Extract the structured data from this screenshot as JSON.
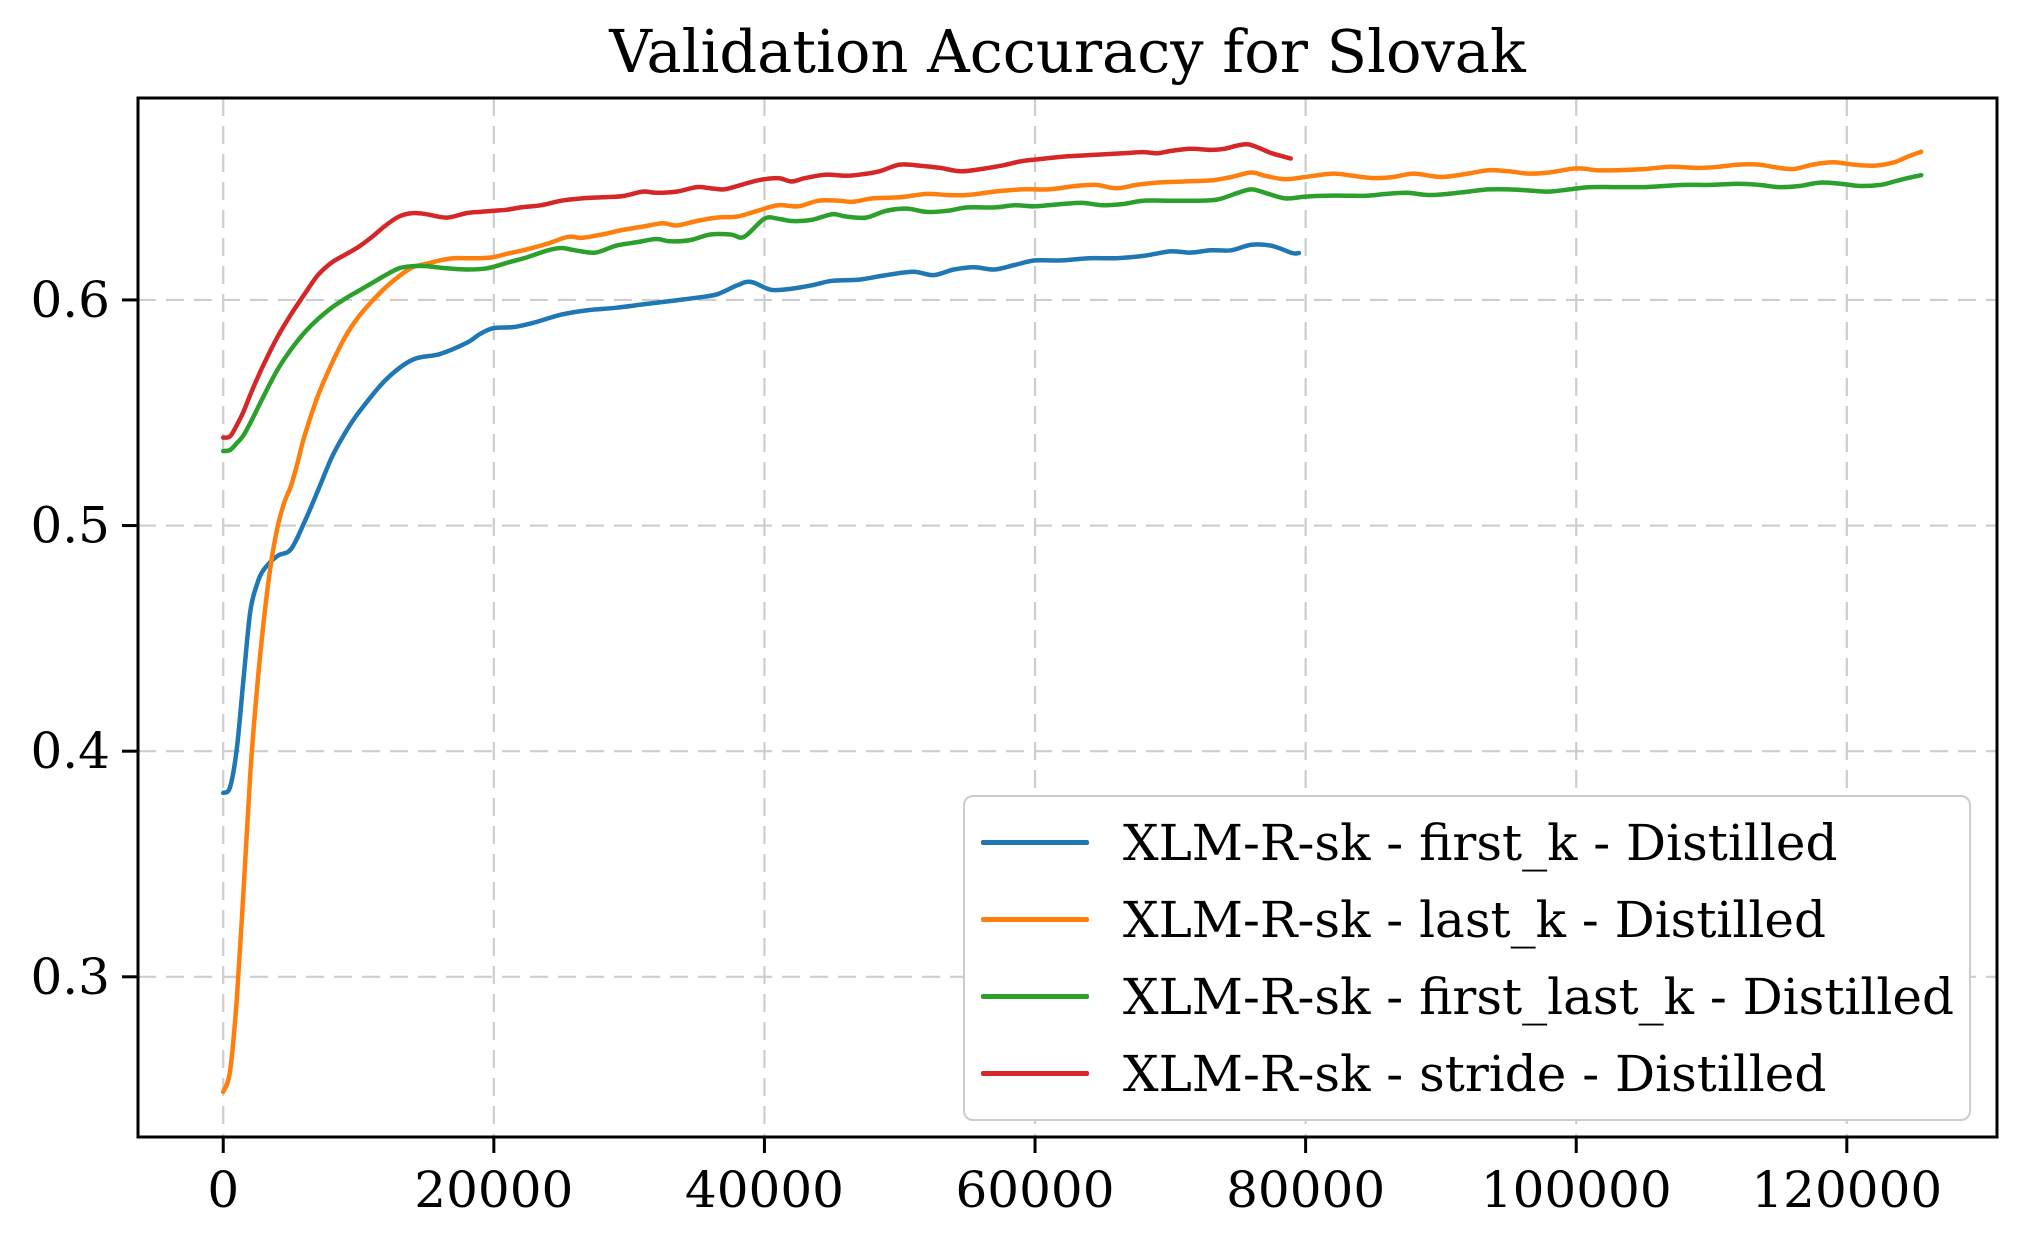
{
  "figure": {
    "background": "#ffffff"
  },
  "chart_data": {
    "type": "line",
    "title": "Validation Accuracy for Slovak",
    "xlabel": "",
    "ylabel": "",
    "xlim": [
      -6300,
      131100
    ],
    "ylim": [
      0.229,
      0.6895
    ],
    "x_ticks": [
      0,
      20000,
      40000,
      60000,
      80000,
      100000,
      120000
    ],
    "y_ticks": [
      0.3,
      0.4,
      0.5,
      0.6
    ],
    "grid": true,
    "grid_color": "#cdcdcd",
    "axis_color": "#000000",
    "legend_position": "lower right",
    "series": [
      {
        "label": "XLM-R-sk - first_k - Distilled",
        "color": "#1f77b4",
        "x": [
          0,
          500,
          1000,
          1500,
          2000,
          2500,
          3000,
          4000,
          5000,
          6000,
          7000,
          8000,
          9000,
          10000,
          12000,
          14000,
          16000,
          18000,
          19000,
          20000,
          21500,
          23000,
          25000,
          27000,
          29000,
          31000,
          33000,
          35000,
          36500,
          38000,
          39000,
          40500,
          42000,
          43500,
          45000,
          47000,
          49000,
          51000,
          52500,
          54000,
          55500,
          57000,
          58500,
          60000,
          62000,
          64000,
          66000,
          68000,
          70000,
          71500,
          73000,
          74500,
          76000,
          77500,
          79000,
          79500
        ],
        "y": [
          0.3815,
          0.384,
          0.401,
          0.432,
          0.462,
          0.474,
          0.4805,
          0.4865,
          0.4895,
          0.5015,
          0.5155,
          0.53,
          0.541,
          0.55,
          0.5645,
          0.5735,
          0.576,
          0.581,
          0.585,
          0.5875,
          0.588,
          0.59,
          0.5935,
          0.5955,
          0.5965,
          0.598,
          0.5995,
          0.601,
          0.6025,
          0.6065,
          0.608,
          0.6045,
          0.605,
          0.6065,
          0.6085,
          0.609,
          0.611,
          0.6125,
          0.611,
          0.6135,
          0.6145,
          0.6135,
          0.6155,
          0.6175,
          0.6175,
          0.6185,
          0.6185,
          0.6195,
          0.6215,
          0.621,
          0.622,
          0.622,
          0.6245,
          0.624,
          0.6208,
          0.6208
        ]
      },
      {
        "label": "XLM-R-sk - last_k - Distilled",
        "color": "#ff7f0e",
        "x": [
          0,
          500,
          1000,
          1500,
          2000,
          2500,
          3000,
          3500,
          4000,
          4500,
          5000,
          5500,
          6000,
          7000,
          8000,
          9000,
          10000,
          11000,
          12000,
          13000,
          14000,
          15000,
          16000,
          17000,
          18000,
          19000,
          20000,
          21000,
          22500,
          24000,
          25500,
          26500,
          28000,
          29500,
          31000,
          32500,
          33500,
          35000,
          36500,
          38000,
          39500,
          41000,
          42500,
          44000,
          45500,
          46500,
          48000,
          50000,
          52000,
          53500,
          55000,
          57000,
          59000,
          61000,
          63000,
          64500,
          66000,
          67500,
          69000,
          71000,
          73000,
          74500,
          76000,
          77000,
          78500,
          80000,
          82000,
          83500,
          85000,
          86500,
          88000,
          90000,
          92000,
          93500,
          95000,
          96500,
          98000,
          100000,
          101500,
          103000,
          105000,
          107000,
          109000,
          110500,
          112000,
          113500,
          114500,
          116000,
          117500,
          119000,
          120500,
          122000,
          123500,
          124500,
          125500
        ],
        "y": [
          0.249,
          0.258,
          0.29,
          0.338,
          0.39,
          0.428,
          0.458,
          0.482,
          0.499,
          0.51,
          0.5175,
          0.528,
          0.5395,
          0.5575,
          0.5715,
          0.5835,
          0.5925,
          0.5995,
          0.6055,
          0.6105,
          0.6145,
          0.616,
          0.6175,
          0.6185,
          0.6185,
          0.6185,
          0.619,
          0.6205,
          0.6225,
          0.625,
          0.628,
          0.6275,
          0.629,
          0.631,
          0.6325,
          0.634,
          0.633,
          0.635,
          0.6365,
          0.637,
          0.6395,
          0.642,
          0.6415,
          0.644,
          0.644,
          0.6435,
          0.645,
          0.6455,
          0.647,
          0.6465,
          0.6465,
          0.648,
          0.649,
          0.649,
          0.6505,
          0.651,
          0.6495,
          0.651,
          0.652,
          0.6525,
          0.653,
          0.6545,
          0.6565,
          0.655,
          0.6535,
          0.6545,
          0.656,
          0.655,
          0.654,
          0.6545,
          0.656,
          0.6545,
          0.656,
          0.6575,
          0.657,
          0.656,
          0.6565,
          0.6583,
          0.6575,
          0.6575,
          0.658,
          0.659,
          0.6585,
          0.659,
          0.66,
          0.66,
          0.659,
          0.658,
          0.66,
          0.661,
          0.66,
          0.6595,
          0.661,
          0.6635,
          0.6657
        ]
      },
      {
        "label": "XLM-R-sk - first_last_k - Distilled",
        "color": "#2ca02c",
        "x": [
          0,
          500,
          1000,
          1500,
          2000,
          2500,
          3000,
          4000,
          5000,
          6000,
          7000,
          8000,
          9000,
          10000,
          11000,
          12000,
          13000,
          14000,
          15000,
          16500,
          18000,
          19500,
          21000,
          22500,
          24000,
          25000,
          26000,
          27500,
          29000,
          30500,
          32000,
          33000,
          34500,
          36000,
          37500,
          38500,
          40000,
          41000,
          42000,
          43500,
          45000,
          46000,
          47500,
          49000,
          50500,
          52000,
          53500,
          55000,
          57000,
          58500,
          60000,
          62000,
          63500,
          65000,
          66500,
          68000,
          70000,
          72000,
          73500,
          75000,
          76000,
          77000,
          78500,
          80000,
          81500,
          83000,
          84500,
          86000,
          87500,
          89000,
          90500,
          92000,
          93500,
          95000,
          96500,
          98000,
          99500,
          101000,
          103000,
          105000,
          106500,
          108000,
          110000,
          112000,
          113500,
          115000,
          116500,
          118000,
          119500,
          121000,
          122500,
          123500,
          124500,
          125500
        ],
        "y": [
          0.533,
          0.5335,
          0.5365,
          0.54,
          0.5455,
          0.5515,
          0.5575,
          0.569,
          0.578,
          0.5855,
          0.5915,
          0.5965,
          0.6005,
          0.604,
          0.6075,
          0.611,
          0.614,
          0.615,
          0.615,
          0.614,
          0.6135,
          0.614,
          0.6165,
          0.619,
          0.622,
          0.623,
          0.622,
          0.621,
          0.624,
          0.6255,
          0.627,
          0.626,
          0.6265,
          0.629,
          0.629,
          0.628,
          0.636,
          0.636,
          0.635,
          0.6355,
          0.638,
          0.637,
          0.6365,
          0.6395,
          0.6405,
          0.639,
          0.6395,
          0.641,
          0.641,
          0.642,
          0.6415,
          0.6425,
          0.643,
          0.642,
          0.6425,
          0.644,
          0.644,
          0.644,
          0.6445,
          0.6475,
          0.649,
          0.6475,
          0.645,
          0.6458,
          0.6462,
          0.6462,
          0.6462,
          0.647,
          0.6475,
          0.6465,
          0.647,
          0.648,
          0.649,
          0.649,
          0.6485,
          0.648,
          0.649,
          0.65,
          0.65,
          0.65,
          0.6505,
          0.651,
          0.651,
          0.6515,
          0.651,
          0.65,
          0.6505,
          0.652,
          0.6515,
          0.6505,
          0.651,
          0.6525,
          0.654,
          0.6553
        ]
      },
      {
        "label": "XLM-R-sk - stride - Distilled",
        "color": "#d62728",
        "x": [
          0,
          500,
          1000,
          1500,
          2000,
          2500,
          3000,
          4000,
          5000,
          6000,
          7000,
          8000,
          9000,
          10000,
          11000,
          12000,
          13000,
          14000,
          15000,
          16500,
          18000,
          19000,
          20000,
          21000,
          22000,
          23500,
          25000,
          26500,
          28000,
          29500,
          31000,
          32000,
          33500,
          35000,
          36000,
          37000,
          38000,
          39500,
          41000,
          42000,
          43000,
          44500,
          46000,
          47000,
          48500,
          50000,
          51500,
          53000,
          54500,
          56000,
          57500,
          59000,
          60500,
          62000,
          63500,
          65000,
          66500,
          68000,
          69000,
          70000,
          71500,
          73000,
          74000,
          75000,
          75700,
          76500,
          77500,
          78900
        ],
        "y": [
          0.539,
          0.5395,
          0.5445,
          0.5505,
          0.558,
          0.565,
          0.5715,
          0.5835,
          0.5935,
          0.6025,
          0.611,
          0.6165,
          0.62,
          0.6235,
          0.628,
          0.633,
          0.637,
          0.6385,
          0.638,
          0.6365,
          0.6385,
          0.639,
          0.6395,
          0.64,
          0.641,
          0.642,
          0.644,
          0.645,
          0.6455,
          0.646,
          0.648,
          0.6475,
          0.648,
          0.65,
          0.6495,
          0.649,
          0.6505,
          0.653,
          0.654,
          0.6525,
          0.654,
          0.6555,
          0.655,
          0.6555,
          0.657,
          0.66,
          0.6595,
          0.6585,
          0.657,
          0.658,
          0.6595,
          0.6615,
          0.6625,
          0.6635,
          0.664,
          0.6645,
          0.665,
          0.6655,
          0.665,
          0.666,
          0.667,
          0.6665,
          0.667,
          0.6685,
          0.669,
          0.6675,
          0.665,
          0.6627
        ]
      }
    ]
  }
}
